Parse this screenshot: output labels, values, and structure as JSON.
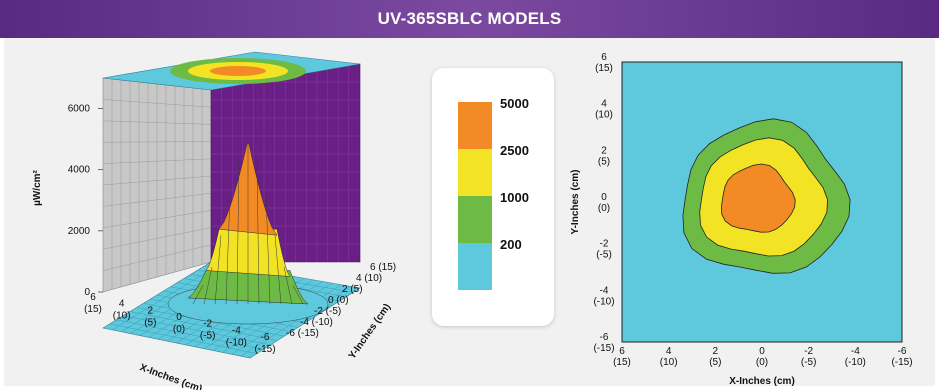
{
  "header": {
    "title": "UV-365SBLC MODELS"
  },
  "colors": {
    "header_bg": "#6b3b94",
    "band_orange": "#f28a25",
    "band_yellow": "#f3e325",
    "band_green": "#6dbb45",
    "band_cyan": "#5ec8dd",
    "wall_purple": "#6a1f86",
    "wall_gray": "#c8c8c8"
  },
  "chart_data": [
    {
      "type": "surface3d",
      "title": "",
      "zlabel": "µW/cm²",
      "z_ticks": [
        "0",
        "2000",
        "4000",
        "6000"
      ],
      "zlim": [
        0,
        7000
      ],
      "xlabel": "X-Inches (cm)",
      "x_ticks": [
        {
          "in": "6",
          "cm": "(15)"
        },
        {
          "in": "4",
          "cm": "(10)"
        },
        {
          "in": "2",
          "cm": "(5)"
        },
        {
          "in": "0",
          "cm": "(0)"
        },
        {
          "in": "-2",
          "cm": "(-5)"
        },
        {
          "in": "-4",
          "cm": "(-10)"
        },
        {
          "in": "-6",
          "cm": "(-15)"
        }
      ],
      "ylabel": "Y-Inches (cm)",
      "y_ticks": [
        {
          "in": "6",
          "cm": "(15)"
        },
        {
          "in": "4",
          "cm": "(10)"
        },
        {
          "in": "2",
          "cm": "(5)"
        },
        {
          "in": "0",
          "cm": "(0)"
        },
        {
          "in": "-2",
          "cm": "(-5)"
        },
        {
          "in": "-4",
          "cm": "(-10)"
        },
        {
          "in": "-6",
          "cm": "(-15)"
        }
      ],
      "peak_intensity": 5600,
      "band_thresholds": [
        200,
        1000,
        2500,
        5000
      ]
    },
    {
      "type": "contour",
      "title": "",
      "xlabel": "X-Inches (cm)",
      "ylabel": "Y-Inches (cm)",
      "xlim": [
        6,
        -6
      ],
      "ylim": [
        -6,
        6
      ],
      "x_ticks": [
        {
          "in": "6",
          "cm": "(15)"
        },
        {
          "in": "4",
          "cm": "(10)"
        },
        {
          "in": "2",
          "cm": "(5)"
        },
        {
          "in": "0",
          "cm": "(0)"
        },
        {
          "in": "-2",
          "cm": "(-5)"
        },
        {
          "in": "-4",
          "cm": "(-10)"
        },
        {
          "in": "-6",
          "cm": "(-15)"
        }
      ],
      "y_ticks": [
        {
          "in": "6",
          "cm": "(15)"
        },
        {
          "in": "4",
          "cm": "(10)"
        },
        {
          "in": "2",
          "cm": "(5)"
        },
        {
          "in": "0",
          "cm": "(0)"
        },
        {
          "in": "-2",
          "cm": "(-5)"
        },
        {
          "in": "-4",
          "cm": "(-10)"
        },
        {
          "in": "-6",
          "cm": "(-15)"
        }
      ],
      "levels": [
        {
          "threshold": "200",
          "color": "#6dbb45",
          "approx_radius_in": 3.4
        },
        {
          "threshold": "1000",
          "color": "#f3e325",
          "approx_radius_in": 2.6
        },
        {
          "threshold": "2500",
          "color": "#f28a25",
          "approx_radius_in": 1.5
        }
      ]
    }
  ],
  "legend": {
    "items": [
      {
        "label": "5000",
        "color": "#f28a25"
      },
      {
        "label": "2500",
        "color": "#f3e325"
      },
      {
        "label": "1000",
        "color": "#6dbb45"
      },
      {
        "label": "200",
        "color": "#5ec8dd"
      }
    ]
  }
}
